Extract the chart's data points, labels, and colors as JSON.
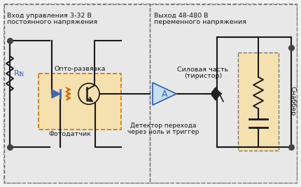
{
  "bg_color": "#f2f2f2",
  "outer_fill": "#ffffff",
  "left_fill": "#e8e8e8",
  "right_fill": "#e8e8e8",
  "opto_fill": "#f5e0b0",
  "snubber_fill": "#f5e0b0",
  "line_color": "#1a1a1a",
  "dash_color": "#777777",
  "opto_dash_color": "#cc7700",
  "text_color": "#1a1a1a",
  "led_color": "#4466aa",
  "orange_color": "#cc6600",
  "amp_fill": "#c8dff0",
  "amp_edge": "#3366aa",
  "thyristor_color": "#222222",
  "dot_color": "#444444",
  "title_left1": "Вход управления 3-32 В",
  "title_left2": "постоянного напряжения",
  "title_right1": "Выход 48-480 В",
  "title_right2": "переменного напряжения",
  "label_rin": "R",
  "label_rin_sub": "IN",
  "label_opto": "Опто-развязка",
  "label_photo": "Фотодатчик",
  "label_detector1": "Детектор перехода",
  "label_detector2": "через ноль и триггер",
  "label_power1": "Силовая часть",
  "label_power2": "(тиристор)",
  "label_snubber": "Снаббер",
  "label_amp": "A"
}
